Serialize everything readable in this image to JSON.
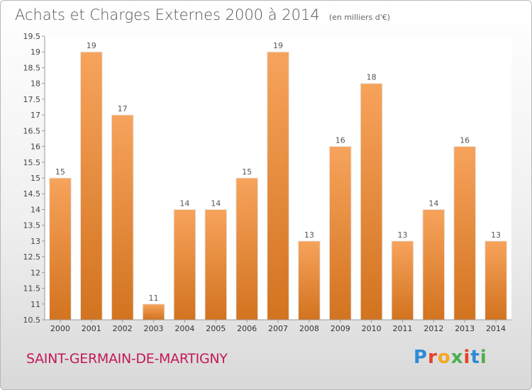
{
  "header": {
    "title": "Achats et Charges Externes 2000 à 2014",
    "subtitle": "(en milliers d'€)"
  },
  "footer": {
    "commune": "SAINT-GERMAIN-DE-MARTIGNY",
    "brand_letters": [
      "P",
      "r",
      "o",
      "x",
      "i",
      "t",
      "i"
    ],
    "brand_colors": [
      "#2e8bd6",
      "#e8402a",
      "#f5a623",
      "#4caf50",
      "#e8402a",
      "#2e8bd6",
      "#4caf50"
    ]
  },
  "colors": {
    "bar_light": "#f7a35c",
    "bar_dark": "#d2731f"
  },
  "chart_data": {
    "type": "bar",
    "categories": [
      "2000",
      "2001",
      "2002",
      "2003",
      "2004",
      "2005",
      "2006",
      "2007",
      "2008",
      "2009",
      "2010",
      "2011",
      "2012",
      "2013",
      "2014"
    ],
    "values": [
      15,
      19,
      17,
      11,
      14,
      14,
      15,
      19,
      13,
      16,
      18,
      13,
      14,
      16,
      13
    ],
    "title": "Achats et Charges Externes 2000 à 2014",
    "ylim": [
      10.5,
      19.5
    ],
    "yticks": [
      "10.5",
      "11",
      "11.5",
      "12",
      "12.5",
      "13",
      "13.5",
      "14",
      "14.5",
      "15",
      "15.5",
      "16",
      "16.5",
      "17",
      "17.5",
      "18",
      "18.5",
      "19",
      "19.5"
    ],
    "grid": false,
    "legend": "none"
  }
}
